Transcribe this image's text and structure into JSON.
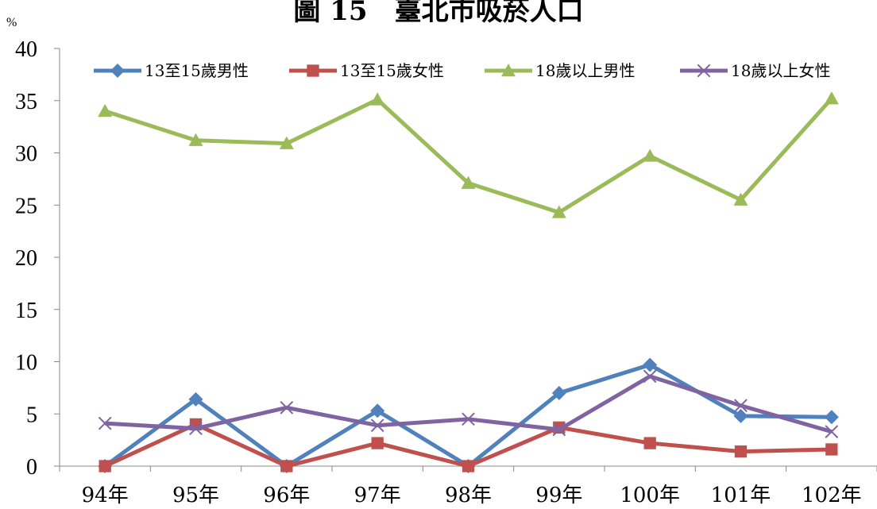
{
  "chart_data": {
    "type": "line",
    "title": "圖 15　臺北市吸菸人口",
    "ylabel": "%",
    "xlabel": "",
    "ylim": [
      0,
      40
    ],
    "yticks": [
      0,
      5,
      10,
      15,
      20,
      25,
      30,
      35,
      40
    ],
    "grid": false,
    "legend_position": "top",
    "categories": [
      "94年",
      "95年",
      "96年",
      "97年",
      "98年",
      "99年",
      "100年",
      "101年",
      "102年"
    ],
    "series": [
      {
        "name": "13至15歲男性",
        "color": "#4f81bd",
        "marker": "diamond",
        "values": [
          0,
          6.4,
          0,
          5.3,
          0,
          7.0,
          9.7,
          4.8,
          4.7
        ]
      },
      {
        "name": "13至15歲女性",
        "color": "#c0504d",
        "marker": "square",
        "values": [
          0,
          4.0,
          0,
          2.2,
          0,
          3.7,
          2.2,
          1.4,
          1.6
        ]
      },
      {
        "name": "18歲以上男性",
        "color": "#9bbb59",
        "marker": "triangle",
        "values": [
          34.0,
          31.2,
          30.9,
          35.1,
          27.1,
          24.3,
          29.7,
          25.5,
          35.2
        ]
      },
      {
        "name": "18歲以上女性",
        "color": "#8064a2",
        "marker": "x",
        "values": [
          4.1,
          3.6,
          5.6,
          3.9,
          4.5,
          3.5,
          8.6,
          5.8,
          3.3
        ]
      }
    ]
  }
}
